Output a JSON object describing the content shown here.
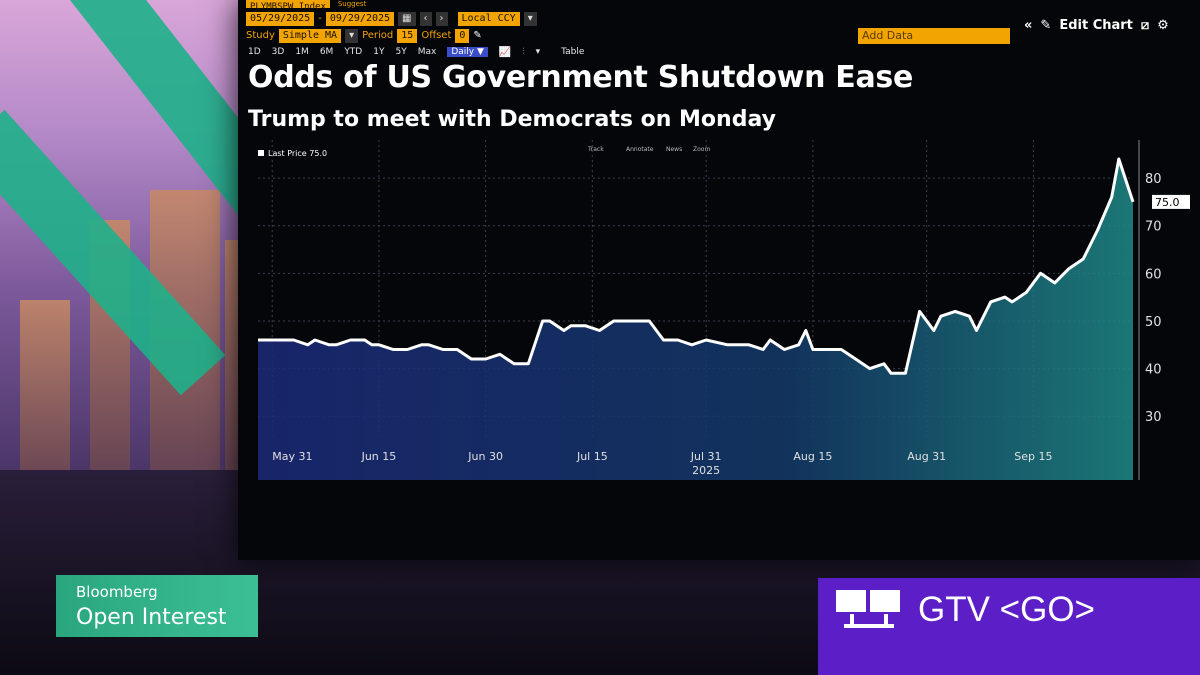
{
  "toolbar": {
    "ticker": "PLYMBSPW Index",
    "suggest": "Suggest",
    "date_from": "05/29/2025",
    "date_to": "09/29/2025",
    "currency": "Local CCY",
    "study_label": "Study",
    "study_value": "Simple MA",
    "period_label": "Period",
    "period_value": "15",
    "offset_label": "Offset",
    "offset_value": "0",
    "ranges": [
      "1D",
      "3D",
      "1M",
      "6M",
      "YTD",
      "1Y",
      "5Y",
      "Max"
    ],
    "frequency": "Daily ▼",
    "table_label": "Table",
    "add_data": "Add Data",
    "edit_chart": "Edit Chart"
  },
  "headline": "Odds of US Government Shutdown Ease",
  "subhead": "Trump to meet with Democrats on Monday",
  "chart_data": {
    "type": "area",
    "legend": "Last Price 75.0",
    "tools": [
      "Track",
      "Annotate",
      "News",
      "Zoom"
    ],
    "last_value_label": "75.0",
    "y_ticks": [
      30,
      40,
      50,
      60,
      70,
      80
    ],
    "ylim": [
      25,
      88
    ],
    "x_ticks": [
      "May 31",
      "Jun 15",
      "Jun 30",
      "Jul 15",
      "Jul 31",
      "Aug 15",
      "Aug 31",
      "Sep 15"
    ],
    "x_subtick": "2025",
    "x_tick_days": [
      2,
      17,
      32,
      47,
      63,
      78,
      94,
      109
    ],
    "x_range_days": [
      0,
      123
    ],
    "series": [
      {
        "x_days": [
          0,
          2,
          4,
          5,
          7,
          8,
          10,
          11,
          13,
          15,
          16,
          17,
          19,
          21,
          23,
          24,
          26,
          28,
          30,
          32,
          34,
          36,
          38,
          40,
          41,
          43,
          44,
          46,
          48,
          50,
          51,
          53,
          55,
          57,
          59,
          61,
          63,
          66,
          69,
          71,
          72,
          74,
          76,
          77,
          78,
          80,
          82,
          84,
          86,
          88,
          89,
          91,
          93,
          95,
          96,
          98,
          100,
          101,
          103,
          105,
          106,
          108,
          110,
          112,
          114,
          116,
          118,
          120,
          121,
          123
        ],
        "values": [
          46,
          46,
          46,
          46,
          45,
          46,
          45,
          45,
          46,
          46,
          45,
          45,
          44,
          44,
          45,
          45,
          44,
          44,
          42,
          42,
          43,
          41,
          41,
          50,
          50,
          48,
          49,
          49,
          48,
          50,
          50,
          50,
          50,
          46,
          46,
          45,
          46,
          45,
          45,
          44,
          46,
          44,
          45,
          48,
          44,
          44,
          44,
          42,
          40,
          41,
          39,
          39,
          52,
          48,
          51,
          52,
          51,
          48,
          54,
          55,
          54,
          56,
          60,
          58,
          61,
          63,
          69,
          76,
          84,
          75
        ]
      }
    ]
  },
  "bug": {
    "line1": "Bloomberg",
    "line2": "Open Interest"
  },
  "gtv": {
    "text": "GTV <GO>"
  }
}
